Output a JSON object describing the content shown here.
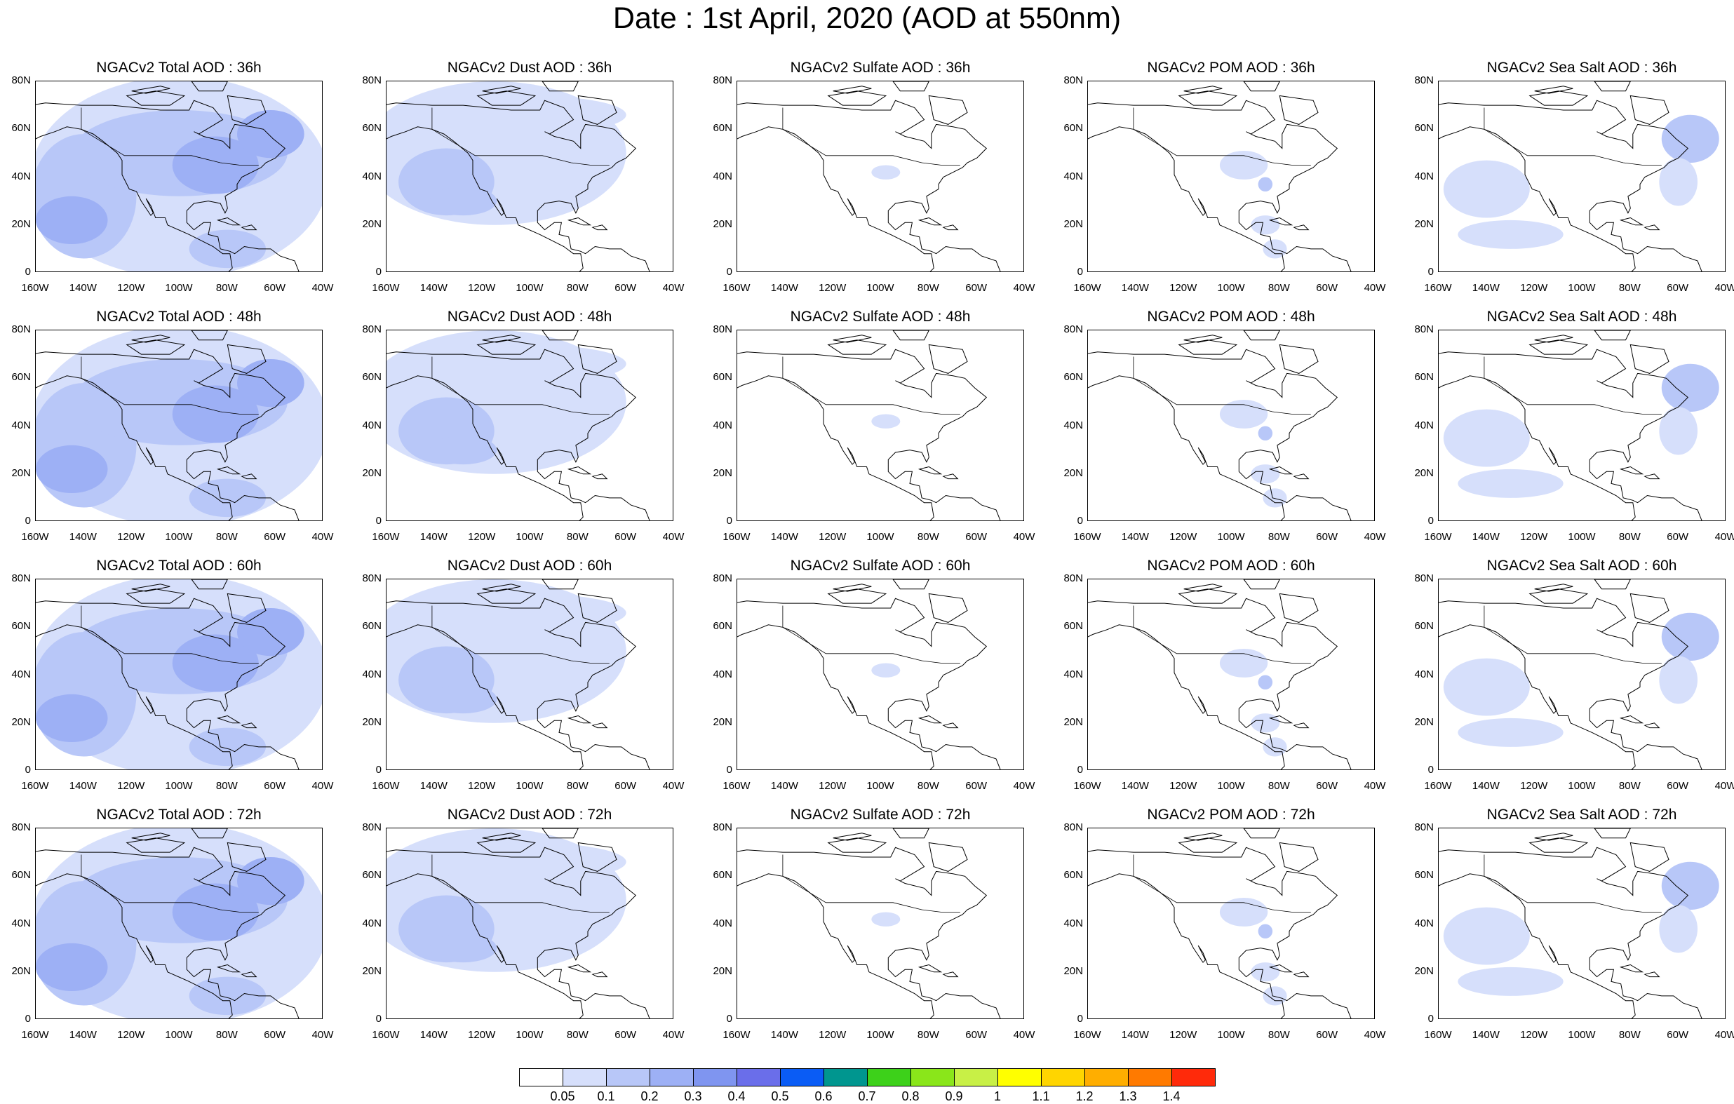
{
  "title": "Date : 1st April, 2020 (AOD at 550nm)",
  "colors": {
    "land_line": "#000000",
    "level_1": "#d6dffb",
    "level_2": "#b8c7f8",
    "level_3": "#9db0f5",
    "level_4": "#7f95f0",
    "level_5": "#6a6eea"
  },
  "axes": {
    "lat_ticks": [
      "80N",
      "60N",
      "40N",
      "20N",
      "0"
    ],
    "lon_ticks": [
      "160W",
      "140W",
      "120W",
      "100W",
      "80W",
      "60W",
      "40W"
    ]
  },
  "panels": [
    {
      "title": "NGACv2 Total AOD : 36h",
      "type": "total"
    },
    {
      "title": "NGACv2 Dust AOD : 36h",
      "type": "dust"
    },
    {
      "title": "NGACv2 Sulfate AOD : 36h",
      "type": "sulfate"
    },
    {
      "title": "NGACv2 POM AOD : 36h",
      "type": "pom"
    },
    {
      "title": "NGACv2 Sea Salt AOD : 36h",
      "type": "seasalt"
    },
    {
      "title": "NGACv2 Total AOD : 48h",
      "type": "total"
    },
    {
      "title": "NGACv2 Dust AOD : 48h",
      "type": "dust"
    },
    {
      "title": "NGACv2 Sulfate AOD : 48h",
      "type": "sulfate"
    },
    {
      "title": "NGACv2 POM AOD : 48h",
      "type": "pom"
    },
    {
      "title": "NGACv2 Sea Salt AOD : 48h",
      "type": "seasalt"
    },
    {
      "title": "NGACv2 Total AOD : 60h",
      "type": "total"
    },
    {
      "title": "NGACv2 Dust AOD : 60h",
      "type": "dust"
    },
    {
      "title": "NGACv2 Sulfate AOD : 60h",
      "type": "sulfate"
    },
    {
      "title": "NGACv2 POM AOD : 60h",
      "type": "pom"
    },
    {
      "title": "NGACv2 Sea Salt AOD : 60h",
      "type": "seasalt"
    },
    {
      "title": "NGACv2 Total AOD : 72h",
      "type": "total"
    },
    {
      "title": "NGACv2 Dust AOD : 72h",
      "type": "dust"
    },
    {
      "title": "NGACv2 Sulfate AOD : 72h",
      "type": "sulfate"
    },
    {
      "title": "NGACv2 POM AOD : 72h",
      "type": "pom"
    },
    {
      "title": "NGACv2 Sea Salt  AOD : 72h",
      "type": "seasalt"
    }
  ],
  "colorbar": {
    "colors": [
      "#ffffff",
      "#d6dffb",
      "#b8c7f8",
      "#9db0f5",
      "#7f95f0",
      "#6a6eea",
      "#0a5cf5",
      "#00968f",
      "#3dd11a",
      "#8ae61a",
      "#c8f046",
      "#ffff00",
      "#ffd500",
      "#ffae00",
      "#ff7a00",
      "#ff2a0a"
    ],
    "labels": [
      "0.05",
      "0.1",
      "0.2",
      "0.3",
      "0.4",
      "0.5",
      "0.6",
      "0.7",
      "0.8",
      "0.9",
      "1",
      "1.1",
      "1.2",
      "1.3",
      "1.4"
    ]
  }
}
